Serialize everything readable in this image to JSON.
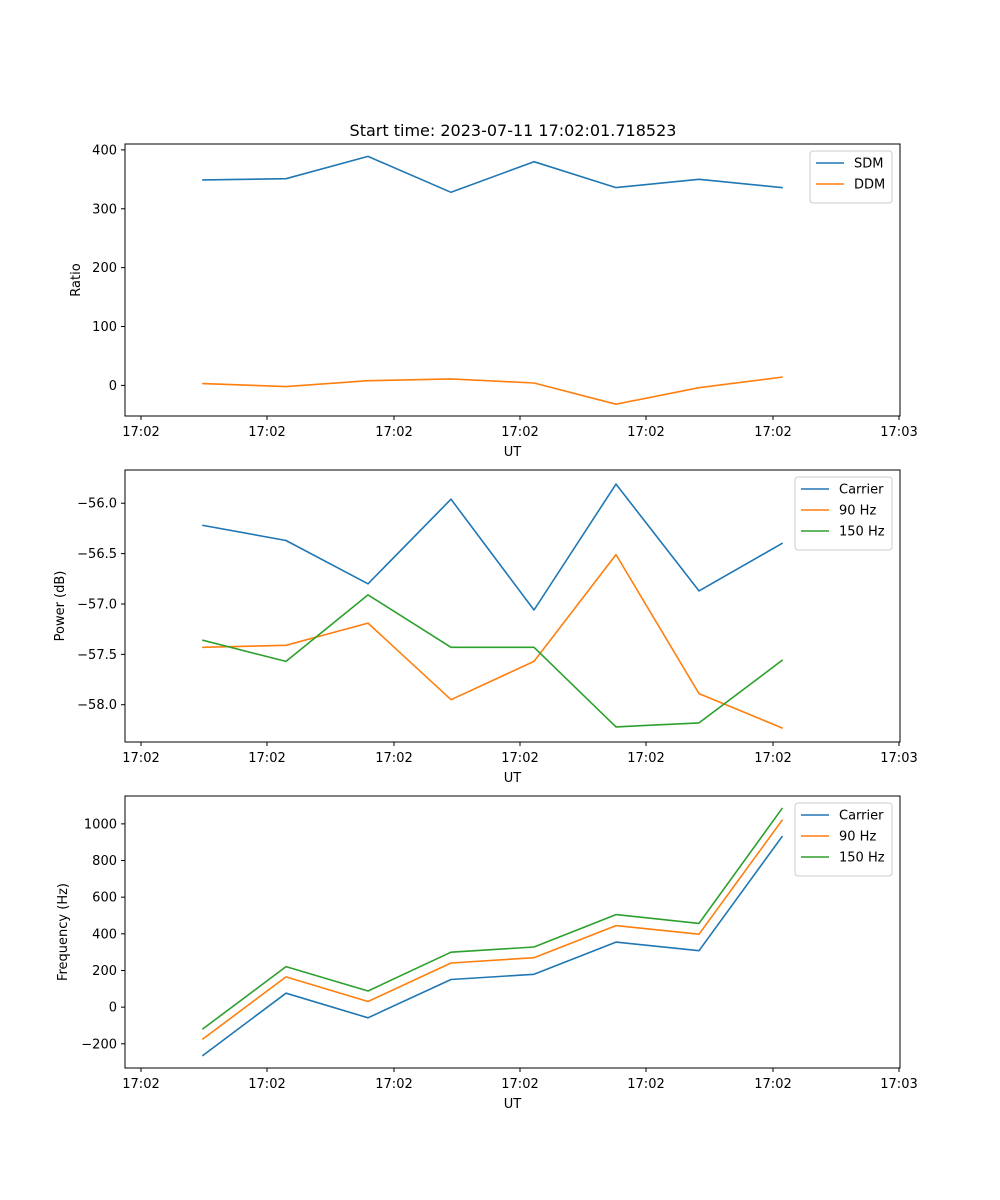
{
  "chart_data": [
    {
      "type": "line",
      "title": "Start time: 2023-07-11 17:02:01.718523",
      "xlabel": "UT",
      "ylabel": "Ratio",
      "x_tick_labels": [
        "17:02",
        "17:02",
        "17:02",
        "17:02",
        "17:02",
        "17:02",
        "17:03"
      ],
      "ylim": [
        -52,
        410
      ],
      "y_ticks": [
        0,
        100,
        200,
        300,
        400
      ],
      "legend": "top-right",
      "series": [
        {
          "name": "SDM",
          "color": "#1f77b4",
          "values": [
            349,
            351,
            389,
            328,
            380,
            336,
            350,
            336
          ]
        },
        {
          "name": "DDM",
          "color": "#ff7f0e",
          "values": [
            3,
            -2,
            8,
            11,
            4,
            -32,
            -4,
            14
          ]
        }
      ]
    },
    {
      "type": "line",
      "title": "",
      "xlabel": "UT",
      "ylabel": "Power (dB)",
      "x_tick_labels": [
        "17:02",
        "17:02",
        "17:02",
        "17:02",
        "17:02",
        "17:02",
        "17:03"
      ],
      "ylim": [
        -58.37,
        -55.67
      ],
      "y_ticks": [
        -58.0,
        -57.5,
        -57.0,
        -56.5,
        -56.0
      ],
      "y_tick_decimals": 1,
      "legend": "top-right",
      "series": [
        {
          "name": "Carrier",
          "color": "#1f77b4",
          "values": [
            -56.22,
            -56.37,
            -56.8,
            -55.96,
            -57.06,
            -55.81,
            -56.87,
            -56.4
          ]
        },
        {
          "name": "90 Hz",
          "color": "#ff7f0e",
          "values": [
            -57.43,
            -57.41,
            -57.19,
            -57.95,
            -57.57,
            -56.51,
            -57.89,
            -58.23
          ]
        },
        {
          "name": "150 Hz",
          "color": "#2ca02c",
          "values": [
            -57.36,
            -57.57,
            -56.91,
            -57.43,
            -57.43,
            -58.22,
            -58.18,
            -57.56
          ]
        }
      ]
    },
    {
      "type": "line",
      "title": "",
      "xlabel": "UT",
      "ylabel": "Frequency (Hz)",
      "x_tick_labels": [
        "17:02",
        "17:02",
        "17:02",
        "17:02",
        "17:02",
        "17:02",
        "17:03"
      ],
      "ylim": [
        -332,
        1152
      ],
      "y_ticks": [
        -200,
        0,
        200,
        400,
        600,
        800,
        1000
      ],
      "legend": "top-right",
      "series": [
        {
          "name": "Carrier",
          "color": "#1f77b4",
          "values": [
            -263,
            76,
            -58,
            151,
            179,
            355,
            308,
            930
          ]
        },
        {
          "name": "90 Hz",
          "color": "#ff7f0e",
          "values": [
            -173,
            165,
            31,
            241,
            270,
            445,
            398,
            1019
          ]
        },
        {
          "name": "150 Hz",
          "color": "#2ca02c",
          "values": [
            -118,
            221,
            88,
            300,
            328,
            505,
            457,
            1083
          ]
        }
      ]
    }
  ]
}
